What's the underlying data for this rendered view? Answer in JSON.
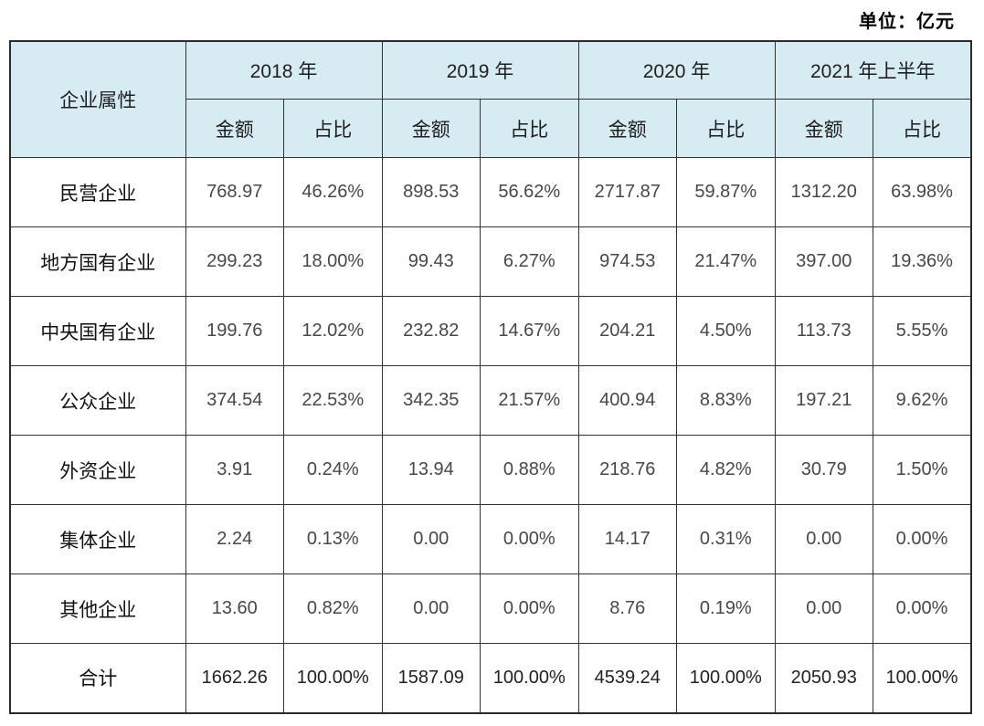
{
  "page": {
    "unit_label": "单位：亿元"
  },
  "table": {
    "corner_header": "企业属性",
    "year_headers": [
      "2018 年",
      "2019 年",
      "2020 年",
      "2021 年上半年"
    ],
    "sub_headers": {
      "amount": "金额",
      "share": "占比"
    },
    "colors": {
      "header_bg": "#d7ebf3",
      "border": "#333333",
      "page_bg": "#ffffff"
    },
    "rows": [
      {
        "label": "民营企业",
        "values": [
          "768.97",
          "46.26%",
          "898.53",
          "56.62%",
          "2717.87",
          "59.87%",
          "1312.20",
          "63.98%"
        ]
      },
      {
        "label": "地方国有企业",
        "values": [
          "299.23",
          "18.00%",
          "99.43",
          "6.27%",
          "974.53",
          "21.47%",
          "397.00",
          "19.36%"
        ]
      },
      {
        "label": "中央国有企业",
        "values": [
          "199.76",
          "12.02%",
          "232.82",
          "14.67%",
          "204.21",
          "4.50%",
          "113.73",
          "5.55%"
        ]
      },
      {
        "label": "公众企业",
        "values": [
          "374.54",
          "22.53%",
          "342.35",
          "21.57%",
          "400.94",
          "8.83%",
          "197.21",
          "9.62%"
        ]
      },
      {
        "label": "外资企业",
        "values": [
          "3.91",
          "0.24%",
          "13.94",
          "0.88%",
          "218.76",
          "4.82%",
          "30.79",
          "1.50%"
        ]
      },
      {
        "label": "集体企业",
        "values": [
          "2.24",
          "0.13%",
          "0.00",
          "0.00%",
          "14.17",
          "0.31%",
          "0.00",
          "0.00%"
        ]
      },
      {
        "label": "其他企业",
        "values": [
          "13.60",
          "0.82%",
          "0.00",
          "0.00%",
          "8.76",
          "0.19%",
          "0.00",
          "0.00%"
        ]
      },
      {
        "label": "合计",
        "values": [
          "1662.26",
          "100.00%",
          "1587.09",
          "100.00%",
          "4539.24",
          "100.00%",
          "2050.93",
          "100.00%"
        ]
      }
    ]
  },
  "chart_data": {
    "type": "table",
    "unit_label": "单位：亿元",
    "row_header": "企业属性",
    "column_groups": [
      "2018 年",
      "2019 年",
      "2020 年",
      "2021 年上半年"
    ],
    "sub_columns": [
      "金额",
      "占比"
    ],
    "categories": [
      "民营企业",
      "地方国有企业",
      "中央国有企业",
      "公众企业",
      "外资企业",
      "集体企业",
      "其他企业",
      "合计"
    ],
    "series": [
      {
        "name": "2018年 金额",
        "values": [
          768.97,
          299.23,
          199.76,
          374.54,
          3.91,
          2.24,
          13.6,
          1662.26
        ]
      },
      {
        "name": "2018年 占比",
        "values": [
          "46.26%",
          "18.00%",
          "12.02%",
          "22.53%",
          "0.24%",
          "0.13%",
          "0.82%",
          "100.00%"
        ]
      },
      {
        "name": "2019年 金额",
        "values": [
          898.53,
          99.43,
          232.82,
          342.35,
          13.94,
          0.0,
          0.0,
          1587.09
        ]
      },
      {
        "name": "2019年 占比",
        "values": [
          "56.62%",
          "6.27%",
          "14.67%",
          "21.57%",
          "0.88%",
          "0.00%",
          "0.00%",
          "100.00%"
        ]
      },
      {
        "name": "2020年 金额",
        "values": [
          2717.87,
          974.53,
          204.21,
          400.94,
          218.76,
          14.17,
          8.76,
          4539.24
        ]
      },
      {
        "name": "2020年 占比",
        "values": [
          "59.87%",
          "21.47%",
          "4.50%",
          "8.83%",
          "4.82%",
          "0.31%",
          "0.19%",
          "100.00%"
        ]
      },
      {
        "name": "2021年上半年 金额",
        "values": [
          1312.2,
          397.0,
          113.73,
          197.21,
          30.79,
          0.0,
          0.0,
          2050.93
        ]
      },
      {
        "name": "2021年上半年 占比",
        "values": [
          "63.98%",
          "19.36%",
          "5.55%",
          "9.62%",
          "1.50%",
          "0.00%",
          "0.00%",
          "100.00%"
        ]
      }
    ]
  }
}
